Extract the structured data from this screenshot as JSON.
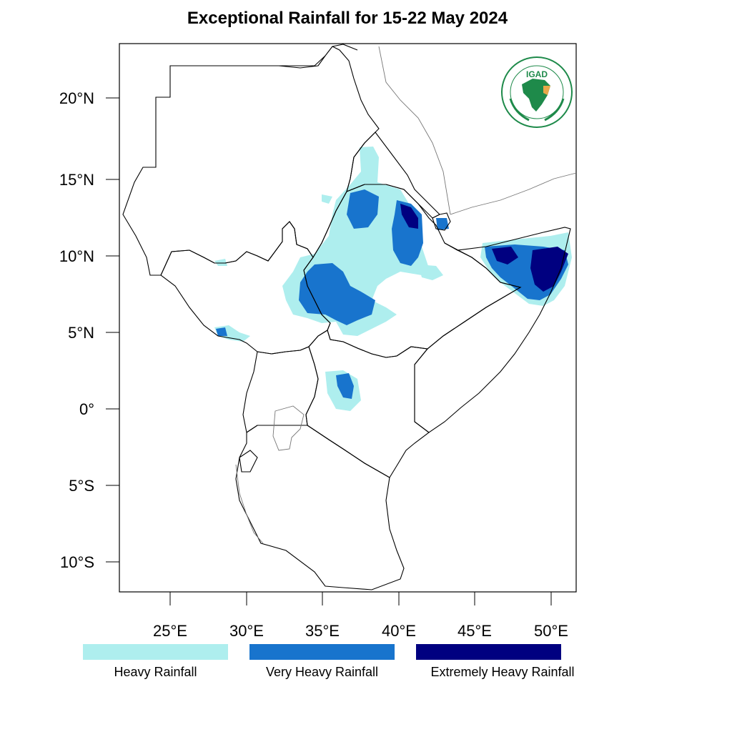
{
  "title": "Exceptional Rainfall for 15-22 May 2024",
  "map": {
    "lat_range": [
      -12,
      23.5
    ],
    "lon_range": [
      21.5,
      51.5
    ],
    "y_ticks": [
      {
        "value": 20,
        "label": "20°N"
      },
      {
        "value": 15,
        "label": "15°N"
      },
      {
        "value": 10,
        "label": "10°N"
      },
      {
        "value": 5,
        "label": "5°N"
      },
      {
        "value": 0,
        "label": "0°"
      },
      {
        "value": -5,
        "label": "5°S"
      },
      {
        "value": -10,
        "label": "10°S"
      }
    ],
    "x_ticks": [
      {
        "value": 25,
        "label": "25°E"
      },
      {
        "value": 30,
        "label": "30°E"
      },
      {
        "value": 35,
        "label": "35°E"
      },
      {
        "value": 40,
        "label": "40°E"
      },
      {
        "value": 45,
        "label": "45°E"
      },
      {
        "value": 50,
        "label": "50°E"
      }
    ]
  },
  "legend": [
    {
      "label": "Heavy Rainfall",
      "color": "#aeeeee"
    },
    {
      "label": "Very Heavy Rainfall",
      "color": "#1874cd"
    },
    {
      "label": "Extremely Heavy Rainfall",
      "color": "#000080"
    }
  ],
  "logo": {
    "text": "IGAD",
    "brand_color": "#1e8a4a"
  }
}
